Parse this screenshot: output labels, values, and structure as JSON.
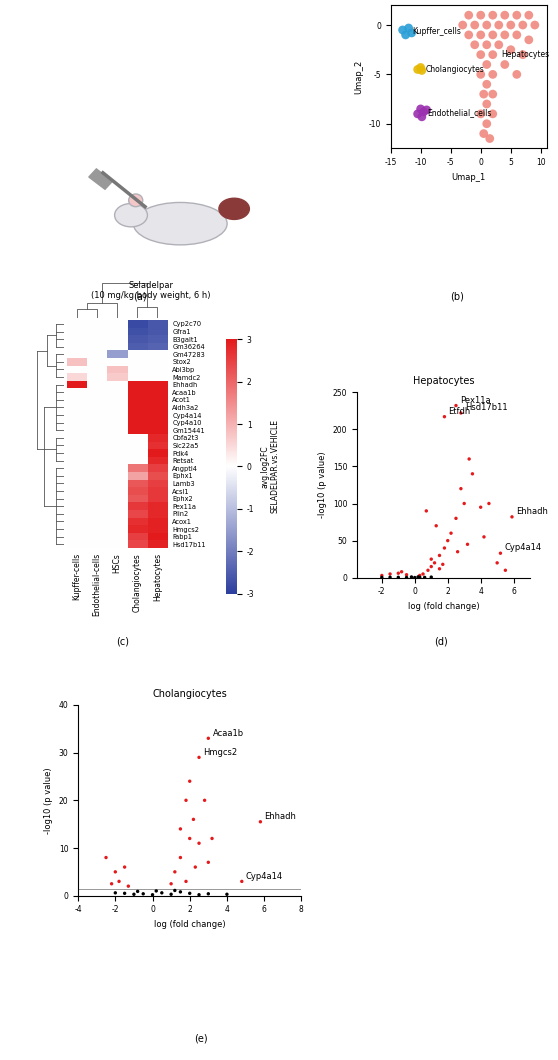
{
  "illustration": {
    "panel_label": "(a)",
    "text": "Seladelpar\n(10 mg/kg body weight, 6 h)"
  },
  "chart_data": [
    {
      "type": "scatter",
      "panel_label": "(b)",
      "x_label": "Umap_1",
      "y_label": "Umap_2",
      "xlim": [
        -15,
        11
      ],
      "xticks": [
        -15,
        -10,
        -5,
        0,
        5,
        10
      ],
      "ylim": [
        -12.5,
        2
      ],
      "yticks": [
        -10,
        -5,
        0
      ],
      "series": [
        {
          "name": "Hepatocytes",
          "color": "#f08a80",
          "x": [
            -2,
            0,
            2,
            4,
            6,
            8,
            9,
            -3,
            -1,
            1,
            3,
            5,
            7,
            -2,
            0,
            2,
            4,
            6,
            8,
            -1,
            1,
            3,
            5,
            7,
            0,
            2,
            4,
            6,
            1,
            0,
            2,
            1,
            0.5,
            2,
            1,
            0,
            2,
            1,
            0.5,
            1.5
          ],
          "y": [
            1,
            1,
            1,
            1,
            1,
            1,
            0,
            0,
            0,
            0,
            0,
            0,
            0,
            -1,
            -1,
            -1,
            -1,
            -1,
            -1.5,
            -2,
            -2,
            -2,
            -2.5,
            -3,
            -3,
            -3,
            -4,
            -5,
            -4,
            -5,
            -5,
            -6,
            -7,
            -7,
            -8,
            -9,
            -9,
            -10,
            -11,
            -11.5
          ]
        },
        {
          "name": "Kupffer_cells",
          "color": "#2a9fd6",
          "x": [
            -13,
            -12.5,
            -12,
            -11.5
          ],
          "y": [
            -0.5,
            -1,
            -0.3,
            -0.8
          ]
        },
        {
          "name": "Cholangiocytes",
          "color": "#e6b800",
          "x": [
            -10.5,
            -10,
            -9.8
          ],
          "y": [
            -4.5,
            -4.3,
            -4.6
          ]
        },
        {
          "name": "Endothelial_cells",
          "color": "#9b30b0",
          "x": [
            -10,
            -9.5,
            -10.5,
            -9.8,
            -9
          ],
          "y": [
            -8.5,
            -8.8,
            -9,
            -9.3,
            -8.6
          ]
        }
      ]
    },
    {
      "type": "heatmap",
      "panel_label": "(c)",
      "columns": [
        "Kupffer-cells",
        "Endothelial-cells",
        "HSCs",
        "Cholangiocytes",
        "Hepatocytes"
      ],
      "rows": [
        "Cyp2c70",
        "Gfra1",
        "B3galt1",
        "Gm36264",
        "Gm47283",
        "Stox2",
        "Abi3bp",
        "Mamdc2",
        "Ehhadh",
        "Acaa1b",
        "Acot1",
        "Aldh3a2",
        "Cyp4a14",
        "Cyp4a10",
        "Gm15441",
        "Cbfa2t3",
        "Slc22a5",
        "Pdk4",
        "Retsat",
        "Angptl4",
        "Ephx1",
        "Lamb3",
        "Acsl1",
        "Ephx2",
        "Pex11a",
        "Plin2",
        "Acox1",
        "Hmgcs2",
        "Fabp1",
        "Hsd17b11"
      ],
      "cells": [
        [
          0,
          0,
          0,
          -2.8,
          -2.6
        ],
        [
          0,
          0,
          0,
          -2.7,
          -2.6
        ],
        [
          0,
          0,
          0,
          -2.6,
          -2.5
        ],
        [
          0,
          0,
          0,
          -2.5,
          -2.4
        ],
        [
          0,
          0,
          -1.5,
          0,
          0
        ],
        [
          0.8,
          0,
          0,
          0,
          0
        ],
        [
          0,
          0,
          0.8,
          0,
          0
        ],
        [
          0.5,
          0,
          0.7,
          0,
          0
        ],
        [
          3,
          0,
          0,
          3,
          3
        ],
        [
          0,
          0,
          0,
          3,
          3
        ],
        [
          0,
          0,
          0,
          3,
          3
        ],
        [
          0,
          0,
          0,
          3,
          3
        ],
        [
          0,
          0,
          0,
          3,
          3
        ],
        [
          0,
          0,
          0,
          3,
          3
        ],
        [
          0,
          0,
          0,
          3,
          3
        ],
        [
          0,
          0,
          0,
          0,
          2.8
        ],
        [
          0,
          0,
          0,
          0,
          2.7
        ],
        [
          0,
          0,
          0,
          0,
          3
        ],
        [
          0,
          0,
          0,
          0,
          2.8
        ],
        [
          0,
          0,
          0,
          1.8,
          2.5
        ],
        [
          0,
          0,
          0,
          1.2,
          2.3
        ],
        [
          0,
          0,
          0,
          2.2,
          2.5
        ],
        [
          0,
          0,
          0,
          2.3,
          2.6
        ],
        [
          0,
          0,
          0,
          2.2,
          2.6
        ],
        [
          0,
          0,
          0,
          2.6,
          2.8
        ],
        [
          0,
          0,
          0,
          2.4,
          2.8
        ],
        [
          0,
          0,
          0,
          2.7,
          2.9
        ],
        [
          0,
          0,
          0,
          2.8,
          2.9
        ],
        [
          0,
          0,
          0,
          2.5,
          3
        ],
        [
          0,
          0,
          0,
          2.4,
          2.9
        ]
      ],
      "colorbar_label": "avg.log2FC\nSELADELPAR.vs.VEHICLE",
      "colorbar_range": [
        -3,
        3
      ],
      "colorbar_ticks": [
        -3,
        -2,
        -1,
        0,
        1,
        2,
        3
      ]
    },
    {
      "type": "scatter",
      "panel_label": "(d)",
      "title": "Hepatocytes",
      "x_label": "log (fold change)",
      "y_label": "-log10 (p value)",
      "xlim": [
        -3.5,
        7
      ],
      "xticks": [
        -2,
        0,
        2,
        4,
        6
      ],
      "ylim": [
        0,
        250
      ],
      "yticks": [
        0,
        50,
        100,
        150,
        200,
        250
      ],
      "series": [
        {
          "color": "#e41a1c",
          "x": [
            0.5,
            0.8,
            1,
            1.2,
            1.5,
            1.8,
            2,
            2.2,
            1.3,
            2.5,
            3,
            2.8,
            3.3,
            3.5,
            4,
            4.5,
            1,
            1.5,
            -0.5,
            -0.8,
            -1,
            -1.5,
            -2,
            0.3,
            1.7,
            2.6,
            3.2,
            4.2,
            0.7,
            5.5,
            5
          ],
          "y": [
            5,
            10,
            15,
            20,
            30,
            40,
            50,
            60,
            70,
            80,
            100,
            120,
            160,
            140,
            95,
            100,
            25,
            12,
            4,
            8,
            6,
            5,
            3,
            3,
            18,
            35,
            45,
            55,
            90,
            10,
            20
          ]
        },
        {
          "color": "#000000",
          "x": [
            -1,
            -0.5,
            0,
            0.3,
            0.6,
            -1.5,
            1,
            -0.2,
            0.2,
            -2
          ],
          "y": [
            0.5,
            0.3,
            0.2,
            0.5,
            0.4,
            0.6,
            0.8,
            1,
            1.1,
            0.4
          ]
        }
      ],
      "labeled_points": [
        {
          "label": "Pex11a",
          "x": 2.5,
          "y": 232,
          "color": "#e41a1c"
        },
        {
          "label": "Hsd17b11",
          "x": 2.8,
          "y": 222,
          "color": "#e41a1c"
        },
        {
          "label": "Etfdh",
          "x": 1.8,
          "y": 217,
          "color": "#e41a1c"
        },
        {
          "label": "Ehhadh",
          "x": 5.9,
          "y": 82,
          "color": "#e41a1c"
        },
        {
          "label": "Cyp4a14",
          "x": 5.2,
          "y": 33,
          "color": "#e41a1c"
        }
      ]
    },
    {
      "type": "scatter",
      "panel_label": "(e)",
      "title": "Cholangiocytes",
      "x_label": "log (fold change)",
      "y_label": "-log10 (p value)",
      "xlim": [
        -4,
        8
      ],
      "xticks": [
        -4,
        -2,
        0,
        2,
        4,
        6,
        8
      ],
      "ylim": [
        0,
        40
      ],
      "yticks": [
        0,
        10,
        20,
        30,
        40
      ],
      "threshold": 1.3,
      "series": [
        {
          "color": "#e41a1c",
          "x": [
            2,
            2.2,
            1.8,
            2,
            2.5,
            1.5,
            1.2,
            1.8,
            2.3,
            3,
            3.2,
            1,
            -2.5,
            -2,
            -1.8,
            -1.5,
            -1.3,
            -2.2,
            2.8,
            1.5
          ],
          "y": [
            12,
            16,
            20,
            24,
            11,
            8,
            5,
            3,
            6,
            7,
            12,
            2.5,
            8,
            5,
            3,
            6,
            2,
            2.5,
            20,
            14
          ]
        },
        {
          "color": "#000000",
          "x": [
            -1.5,
            -1,
            -0.5,
            0,
            0.5,
            1,
            1.5,
            2,
            2.5,
            3,
            -2,
            0.2,
            -0.8,
            1.2,
            4
          ],
          "y": [
            0.5,
            0.3,
            0.4,
            0.2,
            0.6,
            0.3,
            0.8,
            0.5,
            0.2,
            0.4,
            0.6,
            1,
            0.9,
            1.1,
            0.3
          ]
        }
      ],
      "labeled_points": [
        {
          "label": "Acaa1b",
          "x": 3,
          "y": 33,
          "color": "#e41a1c"
        },
        {
          "label": "Hmgcs2",
          "x": 2.5,
          "y": 29,
          "color": "#e41a1c"
        },
        {
          "label": "Ehhadh",
          "x": 5.8,
          "y": 15.5,
          "color": "#e41a1c"
        },
        {
          "label": "Cyp4a14",
          "x": 4.8,
          "y": 3,
          "color": "#e41a1c"
        }
      ]
    }
  ]
}
